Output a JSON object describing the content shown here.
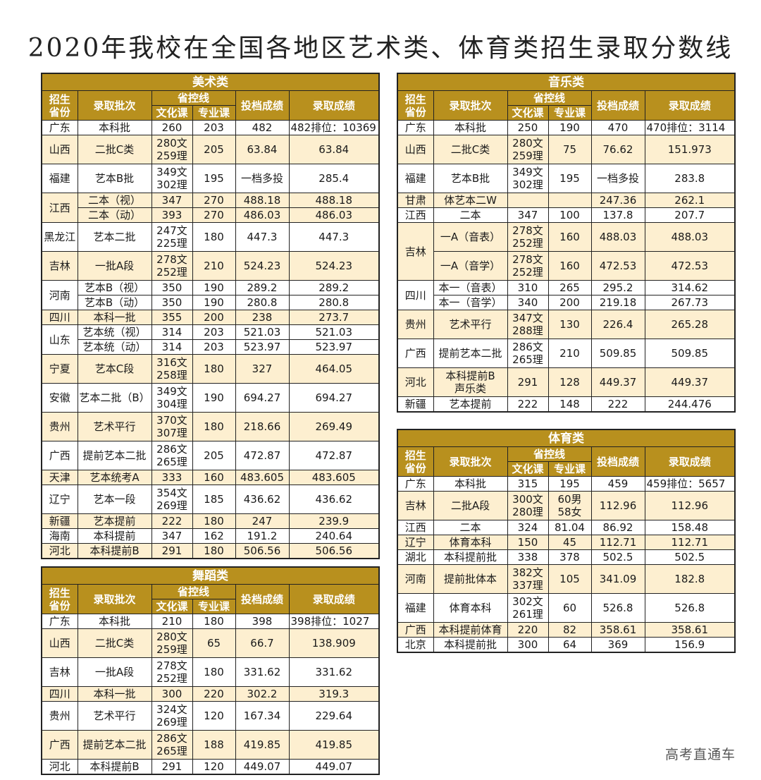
{
  "title": "2020年我校在全国各地区艺术类、体育类招生录取分数线",
  "watermark": "高考直通车",
  "colors": {
    "header": "#B8901E",
    "highlight_row": "#FDEFD0",
    "border": "#222222"
  },
  "headers": {
    "province_l1": "招生",
    "province_l2": "省份",
    "batch": "录取批次",
    "control": "省控线",
    "culture": "文化课",
    "major": "专业课",
    "filing": "投档成绩",
    "admission": "录取成绩"
  },
  "tables": {
    "art": {
      "category": "美术类",
      "rows": [
        {
          "province": "广东",
          "batch": "本科批",
          "culture": "260",
          "major": "203",
          "filing": "482",
          "admission": "482排位：10369"
        },
        {
          "province": "山西",
          "batch": "二批C类",
          "culture": "280文 259理",
          "major": "205",
          "filing": "63.84",
          "admission": "63.84"
        },
        {
          "province": "福建",
          "batch": "艺本B批",
          "culture": "349文 302理",
          "major": "195",
          "filing": "一档多投",
          "admission": "285.4"
        },
        {
          "province": "江西",
          "batch": "二本（视）",
          "culture": "347",
          "major": "270",
          "filing": "488.18",
          "admission": "488.18"
        },
        {
          "province": "江西",
          "batch": "二本（动）",
          "culture": "393",
          "major": "270",
          "filing": "486.03",
          "admission": "486.03"
        },
        {
          "province": "黑龙江",
          "batch": "艺本二批",
          "culture": "247文 225理",
          "major": "180",
          "filing": "447.3",
          "admission": "447.3"
        },
        {
          "province": "吉林",
          "batch": "一批A段",
          "culture": "278文 252理",
          "major": "210",
          "filing": "524.23",
          "admission": "524.23"
        },
        {
          "province": "河南",
          "batch": "艺本B（视）",
          "culture": "350",
          "major": "190",
          "filing": "289.2",
          "admission": "289.2"
        },
        {
          "province": "河南",
          "batch": "艺本B（动）",
          "culture": "350",
          "major": "190",
          "filing": "280.8",
          "admission": "280.8"
        },
        {
          "province": "四川",
          "batch": "本科一批",
          "culture": "355",
          "major": "200",
          "filing": "238",
          "admission": "273.7"
        },
        {
          "province": "山东",
          "batch": "艺本统（视）",
          "culture": "314",
          "major": "203",
          "filing": "521.03",
          "admission": "521.03"
        },
        {
          "province": "山东",
          "batch": "艺本统（动）",
          "culture": "314",
          "major": "203",
          "filing": "523.97",
          "admission": "523.97"
        },
        {
          "province": "宁夏",
          "batch": "艺本C段",
          "culture": "316文 258理",
          "major": "180",
          "filing": "327",
          "admission": "464.05"
        },
        {
          "province": "安徽",
          "batch": "艺本二批（B）",
          "culture": "349文 304理",
          "major": "190",
          "filing": "694.27",
          "admission": "694.27"
        },
        {
          "province": "贵州",
          "batch": "艺术平行",
          "culture": "370文 307理",
          "major": "180",
          "filing": "218.66",
          "admission": "269.49"
        },
        {
          "province": "广西",
          "batch": "提前艺本二批",
          "culture": "286文 265理",
          "major": "205",
          "filing": "472.87",
          "admission": "472.87"
        },
        {
          "province": "天津",
          "batch": "艺本统考A",
          "culture": "333",
          "major": "160",
          "filing": "483.605",
          "admission": "483.605"
        },
        {
          "province": "辽宁",
          "batch": "艺本一段",
          "culture": "354文 269理",
          "major": "185",
          "filing": "436.62",
          "admission": "436.62"
        },
        {
          "province": "新疆",
          "batch": "艺本提前",
          "culture": "222",
          "major": "180",
          "filing": "247",
          "admission": "239.9"
        },
        {
          "province": "海南",
          "batch": "本科提前",
          "culture": "347",
          "major": "162",
          "filing": "191.2",
          "admission": "240.64"
        },
        {
          "province": "河北",
          "batch": "本科提前B",
          "culture": "291",
          "major": "180",
          "filing": "506.56",
          "admission": "506.56"
        }
      ]
    },
    "music": {
      "category": "音乐类",
      "rows": [
        {
          "province": "广东",
          "batch": "本科批",
          "culture": "250",
          "major": "190",
          "filing": "470",
          "admission": "470排位：3114"
        },
        {
          "province": "山西",
          "batch": "二批C类",
          "culture": "280文 259理",
          "major": "75",
          "filing": "76.62",
          "admission": "151.973"
        },
        {
          "province": "福建",
          "batch": "艺本B批",
          "culture": "349文 302理",
          "major": "195",
          "filing": "一档多投",
          "admission": "283.8"
        },
        {
          "province": "甘肃",
          "batch": "体艺本二W",
          "culture": "",
          "major": "",
          "filing": "247.36",
          "admission": "262.1"
        },
        {
          "province": "江西",
          "batch": "二本",
          "culture": "347",
          "major": "100",
          "filing": "137.8",
          "admission": "207.7"
        },
        {
          "province": "吉林",
          "batch": "一A（音表）",
          "culture": "278文 252理",
          "major": "160",
          "filing": "488.03",
          "admission": "488.03"
        },
        {
          "province": "吉林",
          "batch": "一A（音学）",
          "culture": "278文 252理",
          "major": "160",
          "filing": "472.53",
          "admission": "472.53"
        },
        {
          "province": "四川",
          "batch": "本一（音表）",
          "culture": "310",
          "major": "265",
          "filing": "295.2",
          "admission": "314.62"
        },
        {
          "province": "四川",
          "batch": "本一（音学）",
          "culture": "340",
          "major": "200",
          "filing": "219.18",
          "admission": "267.73"
        },
        {
          "province": "贵州",
          "batch": "艺术平行",
          "culture": "347文 288理",
          "major": "130",
          "filing": "226.4",
          "admission": "265.28"
        },
        {
          "province": "广西",
          "batch": "提前艺本二批",
          "culture": "286文 265理",
          "major": "210",
          "filing": "509.85",
          "admission": "509.85"
        },
        {
          "province": "河北",
          "batch": "本科提前B 声乐类",
          "culture": "291",
          "major": "128",
          "filing": "449.37",
          "admission": "449.37"
        },
        {
          "province": "新疆",
          "batch": "艺本提前",
          "culture": "222",
          "major": "148",
          "filing": "222",
          "admission": "244.476"
        }
      ]
    },
    "dance": {
      "category": "舞蹈类",
      "rows": [
        {
          "province": "广东",
          "batch": "本科批",
          "culture": "210",
          "major": "180",
          "filing": "398",
          "admission": "398排位：1027"
        },
        {
          "province": "山西",
          "batch": "二批C类",
          "culture": "280文 259理",
          "major": "65",
          "filing": "66.7",
          "admission": "138.909"
        },
        {
          "province": "吉林",
          "batch": "一批A段",
          "culture": "278文 252理",
          "major": "180",
          "filing": "331.62",
          "admission": "331.62"
        },
        {
          "province": "四川",
          "batch": "本科一批",
          "culture": "300",
          "major": "220",
          "filing": "302.2",
          "admission": "319.3"
        },
        {
          "province": "贵州",
          "batch": "艺术平行",
          "culture": "324文 269理",
          "major": "120",
          "filing": "167.34",
          "admission": "229.64"
        },
        {
          "province": "广西",
          "batch": "提前艺本二批",
          "culture": "286文 265理",
          "major": "188",
          "filing": "419.85",
          "admission": "419.85"
        },
        {
          "province": "河北",
          "batch": "本科提前B",
          "culture": "291",
          "major": "120",
          "filing": "449.07",
          "admission": "449.07"
        }
      ]
    },
    "sports": {
      "category": "体育类",
      "rows": [
        {
          "province": "广东",
          "batch": "本科批",
          "culture": "315",
          "major": "195",
          "filing": "459",
          "admission": "459排位：5657"
        },
        {
          "province": "吉林",
          "batch": "二批A段",
          "culture": "300文 280理",
          "major": "60男 58女",
          "filing": "112.96",
          "admission": "112.96"
        },
        {
          "province": "江西",
          "batch": "二本",
          "culture": "324",
          "major": "81.04",
          "filing": "86.92",
          "admission": "158.48"
        },
        {
          "province": "辽宁",
          "batch": "体育本科",
          "culture": "150",
          "major": "45",
          "filing": "112.71",
          "admission": "112.71"
        },
        {
          "province": "湖北",
          "batch": "本科提前批",
          "culture": "338",
          "major": "378",
          "filing": "502.5",
          "admission": "502.5"
        },
        {
          "province": "河南",
          "batch": "提前批体本",
          "culture": "382文 337理",
          "major": "105",
          "filing": "341.09",
          "admission": "182.8"
        },
        {
          "province": "福建",
          "batch": "体育本科",
          "culture": "302文 261理",
          "major": "60",
          "filing": "526.8",
          "admission": "526.8"
        },
        {
          "province": "广西",
          "batch": "本科提前体育",
          "culture": "220",
          "major": "82",
          "filing": "358.61",
          "admission": "358.61"
        },
        {
          "province": "北京",
          "batch": "本科提前批",
          "culture": "300",
          "major": "64",
          "filing": "369",
          "admission": "156.9"
        }
      ]
    }
  }
}
